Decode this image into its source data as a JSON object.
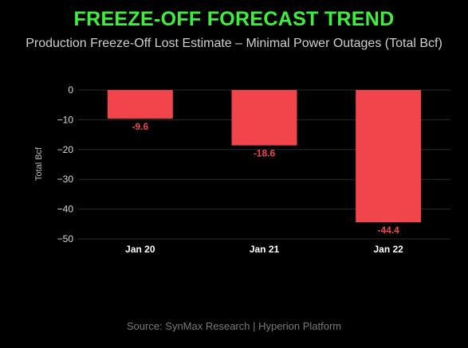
{
  "header": {
    "title": "FREEZE-OFF FORECAST TREND",
    "subtitle": "Production Freeze-Off Lost Estimate – Minimal Power Outages (Total Bcf)"
  },
  "footer": {
    "source": "Source: SynMax Research | Hyperion Platform"
  },
  "colors": {
    "bar": "#f0454b",
    "bar_label": "#f0454b",
    "title": "#3ef03e",
    "grid": "#2b2b2b"
  },
  "chart_data": {
    "type": "bar",
    "title": "FREEZE-OFF FORECAST TREND",
    "subtitle": "Production Freeze-Off Lost Estimate – Minimal Power Outages (Total Bcf)",
    "categories": [
      "Jan 20",
      "Jan 21",
      "Jan 22"
    ],
    "values": [
      -9.6,
      -18.6,
      -44.4
    ],
    "value_labels": [
      "-9.6",
      "-18.6",
      "-44.4"
    ],
    "xlabel": "",
    "ylabel": "Total Bcf",
    "ylim": [
      -50,
      0
    ],
    "yticks": [
      0,
      -10,
      -20,
      -30,
      -40,
      -50
    ],
    "ytick_labels": [
      "0",
      "−10",
      "−20",
      "−30",
      "−40",
      "−50"
    ],
    "grid": true,
    "legend": "none"
  }
}
